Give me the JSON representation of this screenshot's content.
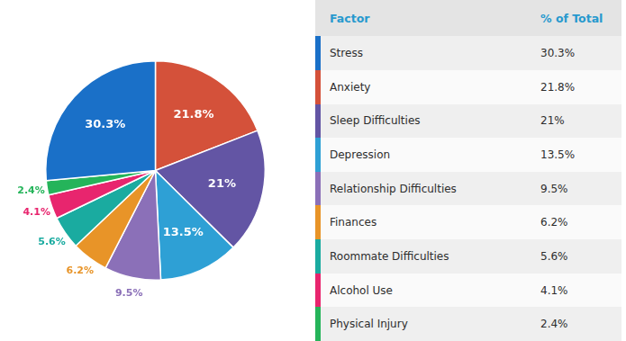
{
  "chart_data": [
    {
      "type": "pie",
      "categories": [
        "Anxiety",
        "Sleep Difficulties",
        "Depression",
        "Relationship Difficulties",
        "Finances",
        "Roommate Difficulties",
        "Alcohol Use",
        "Physical Injury",
        "Stress"
      ],
      "values": [
        21.8,
        21.0,
        13.5,
        9.5,
        6.2,
        5.6,
        4.1,
        2.4,
        30.3
      ],
      "value_labels": [
        "21.8%",
        "21%",
        "13.5%",
        "9.5%",
        "6.2%",
        "5.6%",
        "4.1%",
        "2.4%",
        "30.3%"
      ],
      "colors": [
        "#D4513A",
        "#6355A4",
        "#2EA0D5",
        "#8B70B8",
        "#E89428",
        "#1AABA0",
        "#E8256E",
        "#25B45A",
        "#1A70C8"
      ],
      "data_labels": true
    },
    {
      "type": "table",
      "annotations": [
        "Factor",
        "% of Total"
      ],
      "categories": [
        "Stress",
        "Anxiety",
        "Sleep Difficulties",
        "Depression",
        "Relationship Difficulties",
        "Finances",
        "Roommate Difficulties",
        "Alcohol Use",
        "Physical Injury"
      ],
      "values": [
        30.3,
        21.8,
        21.0,
        13.5,
        9.5,
        6.2,
        5.6,
        4.1,
        2.4
      ],
      "value_labels": [
        "30.3%",
        "21.8%",
        "21%",
        "13.5%",
        "9.5%",
        "6.2%",
        "5.6%",
        "4.1%",
        "2.4%"
      ],
      "colors": [
        "#1A70C8",
        "#D4513A",
        "#6355A4",
        "#2EA0D5",
        "#8B70B8",
        "#E89428",
        "#1AABA0",
        "#E8256E",
        "#25B45A"
      ]
    }
  ]
}
